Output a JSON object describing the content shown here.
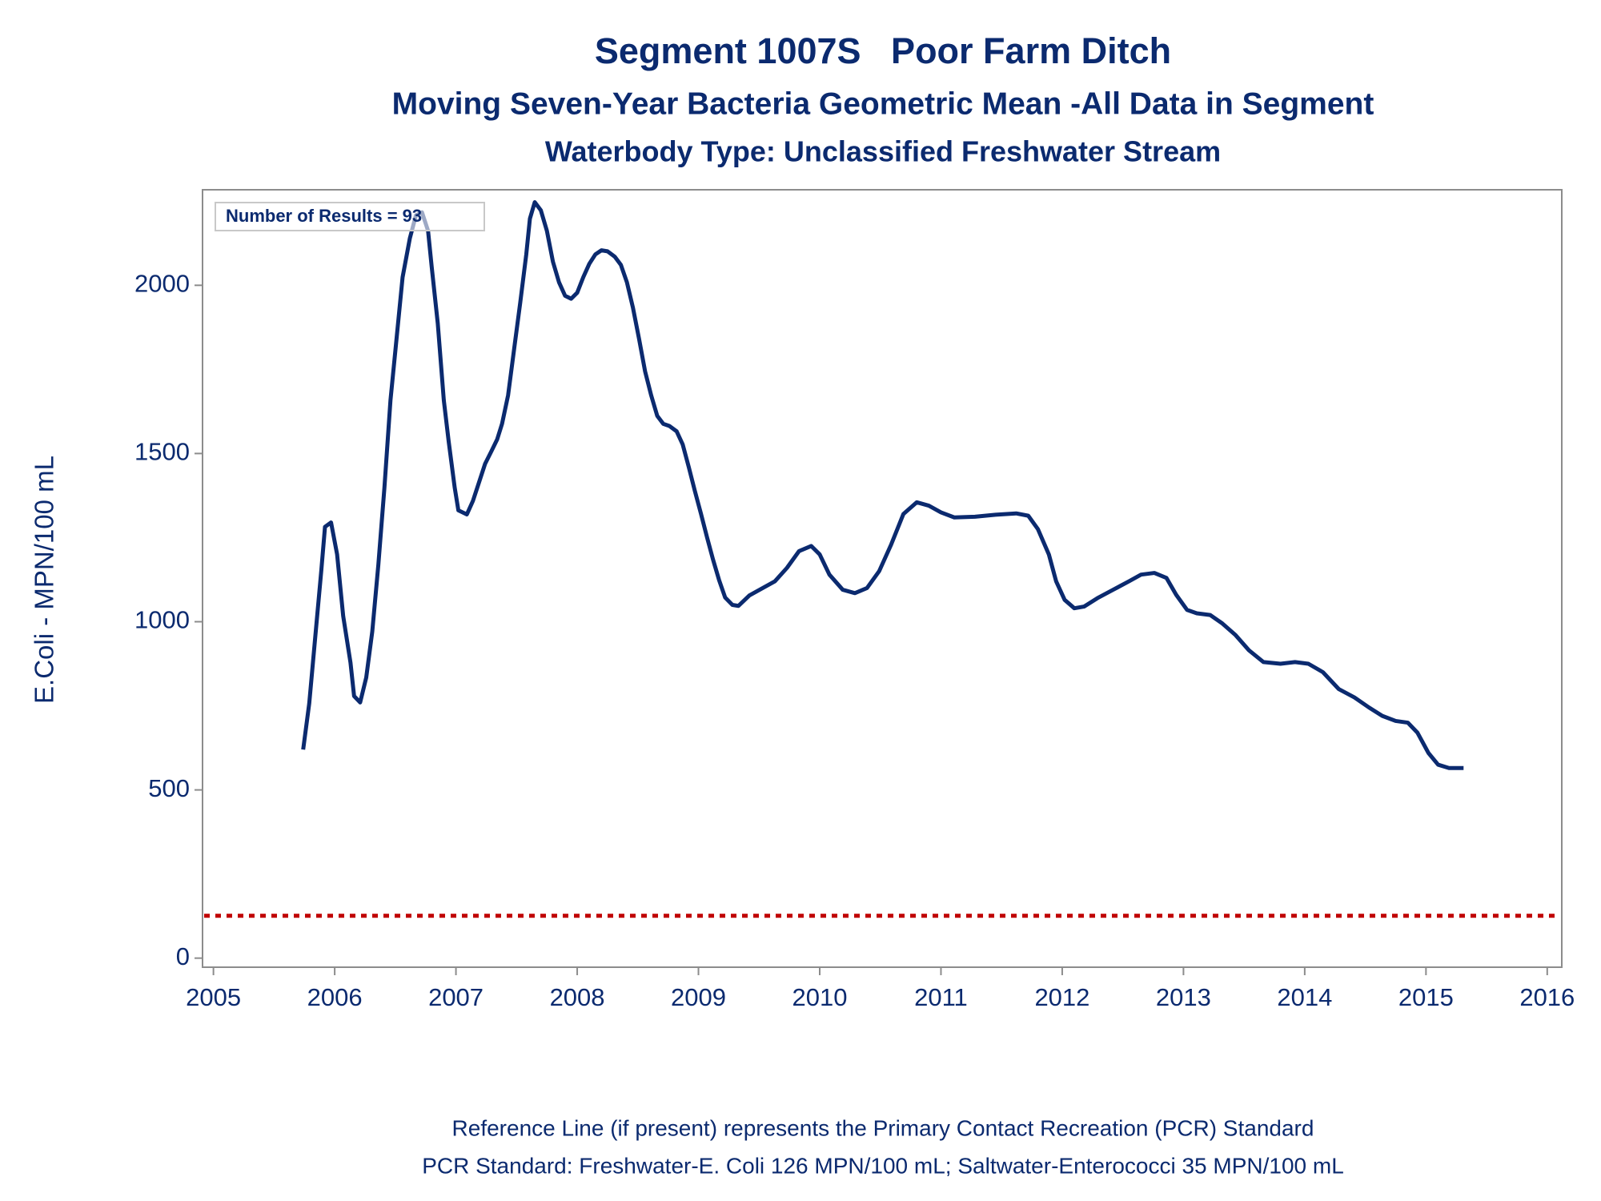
{
  "chart_data": {
    "type": "line",
    "title": "Segment 1007S   Poor Farm Ditch",
    "subtitle": "Moving Seven-Year Bacteria Geometric Mean -All Data in Segment",
    "subtitle2": "Waterbody Type: Unclassified Freshwater Stream",
    "ylabel": "E.Coli - MPN/100 mL",
    "annotation": "Number of Results = 93",
    "footnotes": [
      "Reference Line (if present) represents the Primary Contact Recreation (PCR) Standard",
      "PCR Standard: Freshwater-E. Coli 126 MPN/100 mL; Saltwater-Enterococci 35 MPN/100 mL"
    ],
    "color": "#0b2a6f",
    "reference_line": {
      "value": 126,
      "color": "#c00000"
    },
    "xlim": [
      2004.91,
      2016.12
    ],
    "ylim": [
      -27,
      2284
    ],
    "xticks": [
      2005,
      2006,
      2007,
      2008,
      2009,
      2010,
      2011,
      2012,
      2013,
      2014,
      2015,
      2016
    ],
    "yticks": [
      0,
      500,
      1000,
      1500,
      2000
    ],
    "x": [
      2005.74,
      2005.79,
      2005.84,
      2005.89,
      2005.92,
      2005.97,
      2006.02,
      2006.07,
      2006.13,
      2006.16,
      2006.21,
      2006.26,
      2006.31,
      2006.36,
      2006.41,
      2006.46,
      2006.51,
      2006.56,
      2006.62,
      2006.67,
      2006.72,
      2006.77,
      2006.8,
      2006.85,
      2006.9,
      2006.94,
      2006.99,
      2007.02,
      2007.09,
      2007.14,
      2007.19,
      2007.24,
      2007.29,
      2007.34,
      2007.38,
      2007.43,
      2007.48,
      2007.53,
      2007.58,
      2007.61,
      2007.65,
      2007.7,
      2007.75,
      2007.8,
      2007.85,
      2007.9,
      2007.95,
      2008.0,
      2008.05,
      2008.1,
      2008.15,
      2008.2,
      2008.25,
      2008.31,
      2008.36,
      2008.41,
      2008.46,
      2008.51,
      2008.56,
      2008.61,
      2008.66,
      2008.71,
      2008.76,
      2008.82,
      2008.87,
      2008.92,
      2008.97,
      2009.02,
      2009.07,
      2009.12,
      2009.17,
      2009.22,
      2009.28,
      2009.33,
      2009.42,
      2009.53,
      2009.63,
      2009.73,
      2009.83,
      2009.93,
      2010.0,
      2010.08,
      2010.19,
      2010.29,
      2010.39,
      2010.49,
      2010.59,
      2010.69,
      2010.8,
      2010.9,
      2011.0,
      2011.11,
      2011.28,
      2011.45,
      2011.62,
      2011.72,
      2011.8,
      2011.89,
      2011.95,
      2012.02,
      2012.1,
      2012.18,
      2012.29,
      2012.42,
      2012.55,
      2012.65,
      2012.76,
      2012.86,
      2012.94,
      2013.03,
      2013.11,
      2013.22,
      2013.32,
      2013.43,
      2013.54,
      2013.66,
      2013.8,
      2013.92,
      2014.03,
      2014.15,
      2014.28,
      2014.41,
      2014.53,
      2014.64,
      2014.75,
      2014.85,
      2014.93,
      2015.02,
      2015.1,
      2015.19,
      2015.31
    ],
    "values": [
      620,
      757,
      956,
      1154,
      1282,
      1295,
      1200,
      1017,
      879,
      779,
      760,
      834,
      971,
      1169,
      1398,
      1658,
      1841,
      2024,
      2140,
      2208,
      2217,
      2162,
      2055,
      1887,
      1658,
      1536,
      1398,
      1331,
      1319,
      1359,
      1414,
      1469,
      1505,
      1542,
      1588,
      1673,
      1811,
      1948,
      2092,
      2198,
      2247,
      2223,
      2162,
      2070,
      2009,
      1969,
      1960,
      1978,
      2024,
      2064,
      2092,
      2104,
      2101,
      2085,
      2061,
      2009,
      1933,
      1841,
      1744,
      1673,
      1612,
      1588,
      1582,
      1566,
      1527,
      1460,
      1389,
      1322,
      1252,
      1185,
      1124,
      1072,
      1050,
      1047,
      1078,
      1100,
      1120,
      1160,
      1210,
      1225,
      1200,
      1140,
      1095,
      1085,
      1100,
      1150,
      1230,
      1320,
      1355,
      1345,
      1325,
      1310,
      1312,
      1318,
      1322,
      1315,
      1275,
      1200,
      1120,
      1065,
      1040,
      1045,
      1070,
      1095,
      1120,
      1140,
      1145,
      1130,
      1080,
      1035,
      1025,
      1020,
      995,
      960,
      915,
      880,
      875,
      880,
      875,
      850,
      800,
      775,
      745,
      720,
      705,
      700,
      670,
      610,
      575,
      565,
      565
    ]
  }
}
